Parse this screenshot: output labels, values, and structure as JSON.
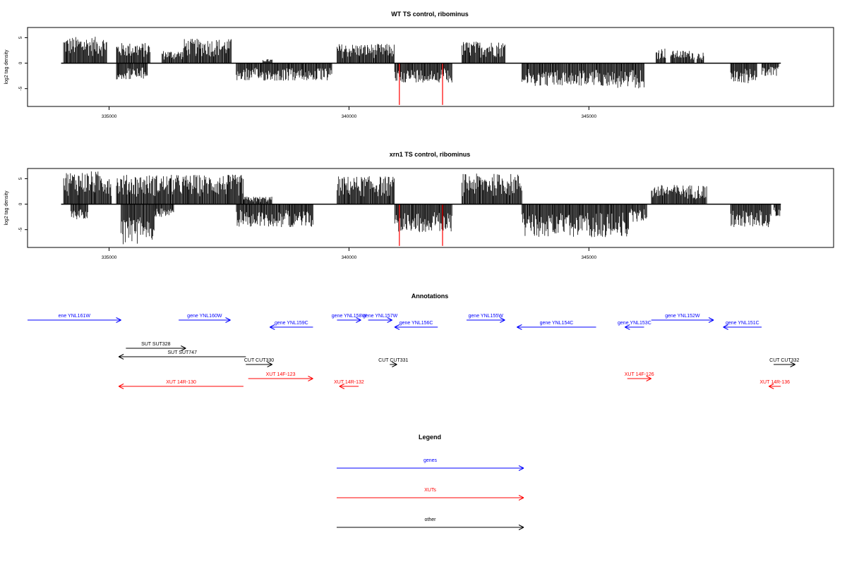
{
  "chart_data": [
    {
      "type": "bar",
      "title": "WT TS control, ribominus",
      "ylabel": "log2 tag density",
      "xlim": [
        333300,
        350100
      ],
      "ylim": [
        -8.5,
        7
      ],
      "x_ticks": [
        335000,
        340000,
        345000
      ],
      "x_tick_labels": [
        "335000",
        "340000",
        "345000"
      ],
      "y_ticks": [
        5,
        0,
        -5
      ],
      "y_tick_labels": [
        "5",
        "0",
        "-5"
      ],
      "baseline": [
        334000,
        349000
      ],
      "plus_regions": [
        {
          "start": 334050,
          "end": 334950,
          "max": 5.2
        },
        {
          "start": 335150,
          "end": 335850,
          "max": 4.0
        },
        {
          "start": 336100,
          "end": 336550,
          "max": 2.5
        },
        {
          "start": 336550,
          "end": 337550,
          "max": 4.8
        },
        {
          "start": 338200,
          "end": 338400,
          "max": 0.8
        },
        {
          "start": 339750,
          "end": 340950,
          "max": 3.8
        },
        {
          "start": 342350,
          "end": 343250,
          "max": 4.3
        },
        {
          "start": 346400,
          "end": 346600,
          "max": 3.0
        },
        {
          "start": 346700,
          "end": 347200,
          "max": 2.5
        },
        {
          "start": 347250,
          "end": 347400,
          "max": 2.2
        }
      ],
      "minus_regions": [
        {
          "start": 335150,
          "end": 335800,
          "max": 3.2
        },
        {
          "start": 337650,
          "end": 339650,
          "max": 3.5
        },
        {
          "start": 340950,
          "end": 342150,
          "max": 3.8
        },
        {
          "start": 343600,
          "end": 345500,
          "max": 4.5
        },
        {
          "start": 345500,
          "end": 346150,
          "max": 5.0
        },
        {
          "start": 347950,
          "end": 348500,
          "max": 4.0
        },
        {
          "start": 348600,
          "end": 348950,
          "max": 2.5
        }
      ],
      "red_marks": [
        {
          "x": 341050,
          "y": -8.2
        },
        {
          "x": 341950,
          "y": -8.2
        }
      ]
    },
    {
      "type": "bar",
      "title": "xrn1 TS control, ribominus",
      "ylabel": "log2 tag density",
      "xlim": [
        333300,
        350100
      ],
      "ylim": [
        -8.5,
        7
      ],
      "x_ticks": [
        335000,
        340000,
        345000
      ],
      "x_tick_labels": [
        "335000",
        "340000",
        "345000"
      ],
      "y_ticks": [
        5,
        0,
        -5
      ],
      "y_tick_labels": [
        "5",
        "0",
        "-5"
      ],
      "baseline": [
        334000,
        349000
      ],
      "plus_regions": [
        {
          "start": 334050,
          "end": 335050,
          "max": 6.5
        },
        {
          "start": 335150,
          "end": 337800,
          "max": 5.8
        },
        {
          "start": 337800,
          "end": 338400,
          "max": 1.5
        },
        {
          "start": 339750,
          "end": 340950,
          "max": 5.5
        },
        {
          "start": 342350,
          "end": 343600,
          "max": 6.0
        },
        {
          "start": 346300,
          "end": 347450,
          "max": 3.8
        }
      ],
      "minus_regions": [
        {
          "start": 334200,
          "end": 334550,
          "max": 3.0
        },
        {
          "start": 335250,
          "end": 335950,
          "max": 8.0
        },
        {
          "start": 335950,
          "end": 336350,
          "max": 2.5
        },
        {
          "start": 337650,
          "end": 339250,
          "max": 4.5
        },
        {
          "start": 340950,
          "end": 342150,
          "max": 5.5
        },
        {
          "start": 343600,
          "end": 345850,
          "max": 6.5
        },
        {
          "start": 345850,
          "end": 346200,
          "max": 3.5
        },
        {
          "start": 347950,
          "end": 348800,
          "max": 4.5
        },
        {
          "start": 348850,
          "end": 349000,
          "max": 2.5
        }
      ],
      "red_marks": [
        {
          "x": 341050,
          "y": -8.2
        },
        {
          "x": 341950,
          "y": -8.2
        }
      ]
    }
  ],
  "annotations": {
    "title": "Annotations",
    "features": [
      {
        "label": "ene YNL161W",
        "type": "gene",
        "strand": "+",
        "start": 333300,
        "end": 335250,
        "row": 0
      },
      {
        "label": "gene YNL160W",
        "type": "gene",
        "strand": "+",
        "start": 336450,
        "end": 337530,
        "row": 0
      },
      {
        "label": "gene YNL159C",
        "type": "gene",
        "strand": "-",
        "start": 338350,
        "end": 339250,
        "row": 1
      },
      {
        "label": "gene YNL158W",
        "type": "gene",
        "strand": "+",
        "start": 339750,
        "end": 340250,
        "row": 0
      },
      {
        "label": "gene YNL157W",
        "type": "gene",
        "strand": "+",
        "start": 340400,
        "end": 340900,
        "row": 0
      },
      {
        "label": "gene YNL156C",
        "type": "gene",
        "strand": "-",
        "start": 340950,
        "end": 341850,
        "row": 1
      },
      {
        "label": "gene YNL155W",
        "type": "gene",
        "strand": "+",
        "start": 342450,
        "end": 343250,
        "row": 0
      },
      {
        "label": "gene YNL154C",
        "type": "gene",
        "strand": "-",
        "start": 343500,
        "end": 345150,
        "row": 1
      },
      {
        "label": "gene YNL153C",
        "type": "gene",
        "strand": "-",
        "start": 345750,
        "end": 346150,
        "row": 1
      },
      {
        "label": "gene YNL152W",
        "type": "gene",
        "strand": "+",
        "start": 346300,
        "end": 347600,
        "row": 0
      },
      {
        "label": "gene YNL151C",
        "type": "gene",
        "strand": "-",
        "start": 347800,
        "end": 348600,
        "row": 1
      },
      {
        "label": "SUT SUT328",
        "type": "other",
        "strand": "+",
        "start": 335350,
        "end": 336600,
        "row": 2
      },
      {
        "label": "SUT SUT747",
        "type": "other",
        "strand": "-",
        "start": 335200,
        "end": 337850,
        "row": 3
      },
      {
        "label": "CUT CUT330",
        "type": "other",
        "strand": "+",
        "start": 337850,
        "end": 338400,
        "row": 4
      },
      {
        "label": "CUT CUT331",
        "type": "other",
        "strand": "+",
        "start": 340850,
        "end": 341000,
        "row": 4
      },
      {
        "label": "CUT CUT332",
        "type": "other",
        "strand": "+",
        "start": 348850,
        "end": 349300,
        "row": 4
      },
      {
        "label": "XUT 14F-123",
        "type": "XUT",
        "strand": "+",
        "start": 337900,
        "end": 339250,
        "row": 5
      },
      {
        "label": "XUT 14R-130",
        "type": "XUT",
        "strand": "-",
        "start": 335200,
        "end": 337800,
        "row": 6
      },
      {
        "label": "XUT 14R-132",
        "type": "XUT",
        "strand": "-",
        "start": 339800,
        "end": 340200,
        "row": 6
      },
      {
        "label": "XUT 14F-126",
        "type": "XUT",
        "strand": "+",
        "start": 345800,
        "end": 346300,
        "row": 5
      },
      {
        "label": "XUT 14R-136",
        "type": "XUT",
        "strand": "-",
        "start": 348750,
        "end": 349000,
        "row": 6
      }
    ]
  },
  "legend": {
    "title": "Legend",
    "items": [
      {
        "label": "genes",
        "color": "#0000ff"
      },
      {
        "label": "XUTs",
        "color": "#ff0000"
      },
      {
        "label": "other",
        "color": "#000000"
      }
    ]
  },
  "colors": {
    "gene": "#0000ff",
    "XUT": "#ff0000",
    "other": "#000000",
    "bars": "#000000",
    "red_marks": "#ff0000"
  }
}
